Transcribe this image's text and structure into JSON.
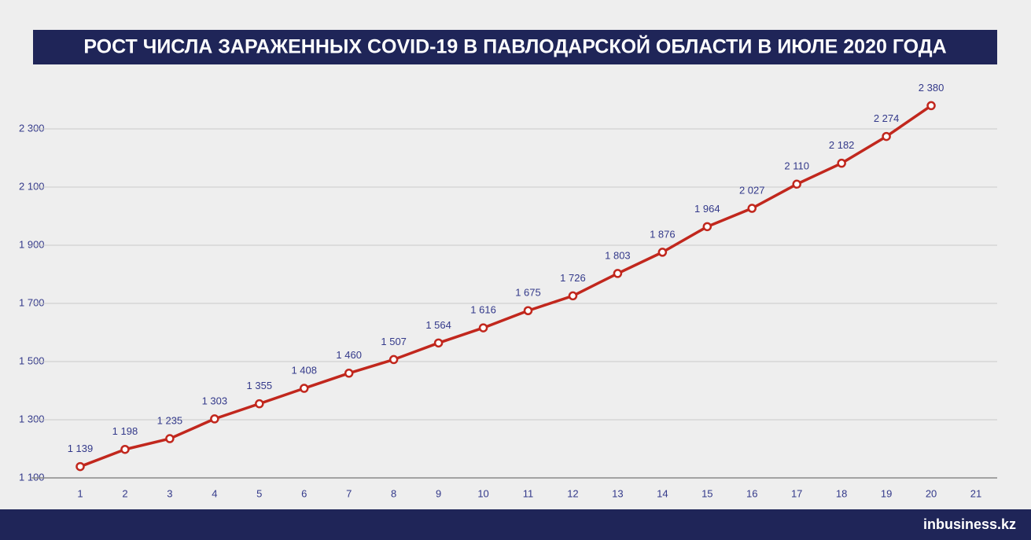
{
  "chart_data": {
    "type": "line",
    "title": "РОСТ ЧИСЛА ЗАРАЖЕННЫХ COVID-19 В ПАВЛОДАРСКОЙ ОБЛАСТИ В ИЮЛЕ 2020 ГОДА",
    "source": "inbusiness.kz",
    "categories": [
      "1",
      "2",
      "3",
      "4",
      "5",
      "6",
      "7",
      "8",
      "9",
      "10",
      "11",
      "12",
      "13",
      "14",
      "15",
      "16",
      "17",
      "18",
      "19",
      "20",
      "21"
    ],
    "series": [
      {
        "color": "#c1271d",
        "values": [
          1139,
          1198,
          1235,
          1303,
          1355,
          1408,
          1460,
          1507,
          1564,
          1616,
          1675,
          1726,
          1803,
          1876,
          1964,
          2027,
          2110,
          2182,
          2274,
          2380,
          null
        ],
        "value_labels": [
          "1 139",
          "1 198",
          "1 235",
          "1 303",
          "1 355",
          "1 408",
          "1 460",
          "1 507",
          "1 564",
          "1 616",
          "1 675",
          "1 726",
          "1 803",
          "1 876",
          "1 964",
          "2 027",
          "2 110",
          "2 182",
          "2 274",
          "2 380",
          null
        ]
      }
    ],
    "ylim": [
      1100,
      2500
    ],
    "yticks": [
      {
        "value": 1100,
        "label": "1 100"
      },
      {
        "value": 1300,
        "label": "1 300"
      },
      {
        "value": 1500,
        "label": "1 500"
      },
      {
        "value": 1700,
        "label": "1 700"
      },
      {
        "value": 1900,
        "label": "1 900"
      },
      {
        "value": 2100,
        "label": "2 100"
      },
      {
        "value": 2300,
        "label": "2 300"
      }
    ],
    "grid": true
  }
}
